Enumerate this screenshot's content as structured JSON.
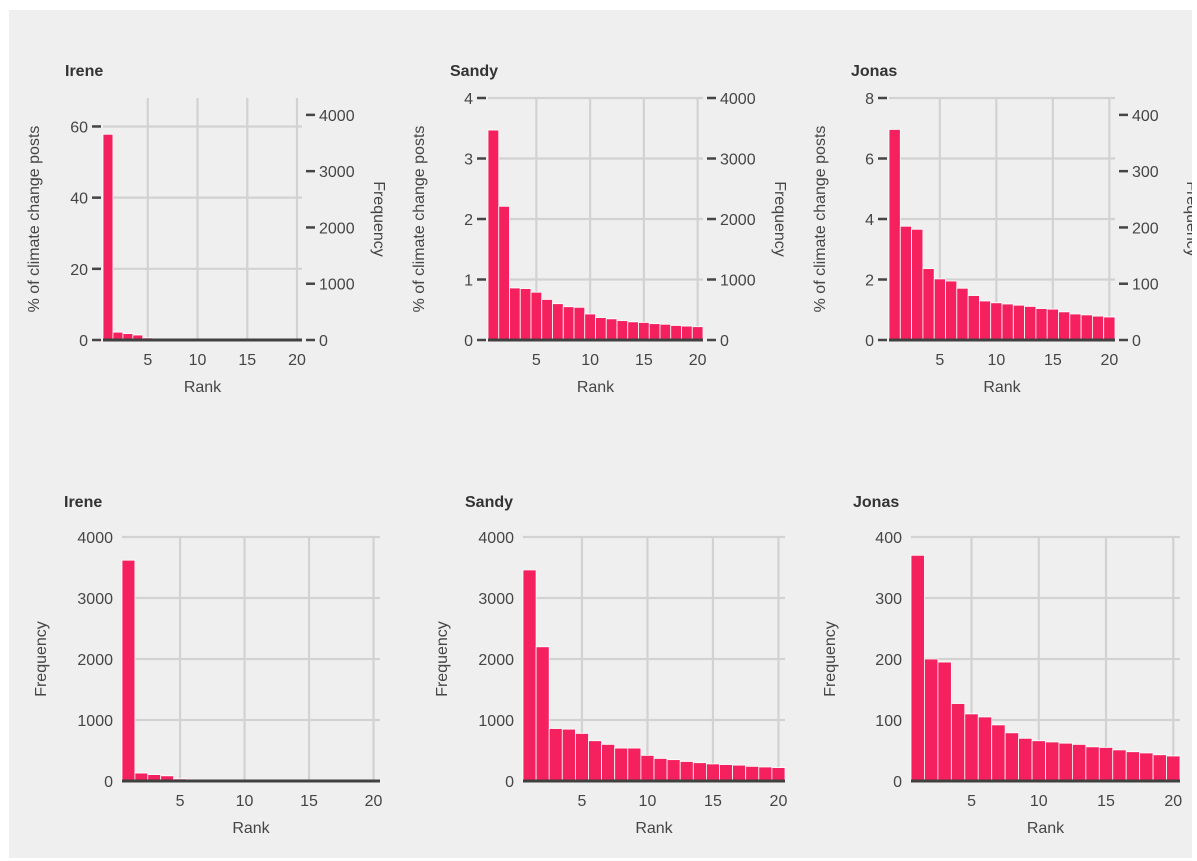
{
  "colors": {
    "bar": "#f5215f",
    "bar_edge": "#ffffff",
    "grid": "#d2d2d2",
    "panel_bg": "#efefef",
    "baseline": "#404040"
  },
  "chart_data": [
    {
      "id": "top-irene",
      "type": "bar",
      "title": "Irene",
      "xlabel": "Rank",
      "ylabel": "% of climate change posts",
      "ylabel2": "Frequency",
      "x": [
        1,
        2,
        3,
        4,
        5,
        6,
        7,
        8,
        9,
        10,
        11,
        12,
        13,
        14,
        15,
        16,
        17,
        18,
        19,
        20
      ],
      "values": [
        57.8,
        2.2,
        1.8,
        1.4,
        0.6,
        0.3,
        0.25,
        0.2,
        0.18,
        0.15,
        0.13,
        0.12,
        0.1,
        0.1,
        0.09,
        0.08,
        0.07,
        0.07,
        0.06,
        0.06
      ],
      "ylim": [
        0,
        68
      ],
      "yticks": [
        0,
        20,
        40,
        60
      ],
      "y2lim": [
        0,
        4300
      ],
      "y2ticks": [
        0,
        1000,
        2000,
        3000,
        4000
      ],
      "xlim": [
        0.5,
        20.5
      ],
      "xticks": [
        5,
        10,
        15,
        20
      ],
      "grid": true
    },
    {
      "id": "top-sandy",
      "type": "bar",
      "title": "Sandy",
      "xlabel": "Rank",
      "ylabel": "% of climate change posts",
      "ylabel2": "Frequency",
      "x": [
        1,
        2,
        3,
        4,
        5,
        6,
        7,
        8,
        9,
        10,
        11,
        12,
        13,
        14,
        15,
        16,
        17,
        18,
        19,
        20
      ],
      "values": [
        3.47,
        2.21,
        0.86,
        0.85,
        0.79,
        0.67,
        0.6,
        0.55,
        0.54,
        0.43,
        0.37,
        0.35,
        0.32,
        0.3,
        0.29,
        0.27,
        0.26,
        0.24,
        0.23,
        0.22
      ],
      "ylim": [
        0,
        4.0
      ],
      "yticks": [
        0,
        1,
        2,
        3,
        4
      ],
      "y2lim": [
        0,
        4000
      ],
      "y2ticks": [
        0,
        1000,
        2000,
        3000,
        4000
      ],
      "xlim": [
        0.5,
        20.5
      ],
      "xticks": [
        5,
        10,
        15,
        20
      ],
      "grid": true
    },
    {
      "id": "top-jonas",
      "type": "bar",
      "title": "Jonas",
      "xlabel": "Rank",
      "ylabel": "% of climate change posts",
      "ylabel2": "Frequency",
      "x": [
        1,
        2,
        3,
        4,
        5,
        6,
        7,
        8,
        9,
        10,
        11,
        12,
        13,
        14,
        15,
        16,
        17,
        18,
        19,
        20
      ],
      "values": [
        6.96,
        3.76,
        3.66,
        2.36,
        2.02,
        1.95,
        1.71,
        1.47,
        1.29,
        1.23,
        1.19,
        1.15,
        1.11,
        1.04,
        1.02,
        0.93,
        0.86,
        0.83,
        0.79,
        0.76
      ],
      "ylim": [
        0,
        8.0
      ],
      "yticks": [
        0,
        2,
        4,
        6,
        8
      ],
      "y2lim": [
        0,
        430
      ],
      "y2ticks": [
        0,
        100,
        200,
        300,
        400
      ],
      "xlim": [
        0.5,
        20.5
      ],
      "xticks": [
        5,
        10,
        15,
        20
      ],
      "grid": true
    },
    {
      "id": "bottom-irene",
      "type": "bar",
      "title": "Irene",
      "xlabel": "Rank",
      "ylabel": "Frequency",
      "x": [
        1,
        2,
        3,
        4,
        5,
        6,
        7,
        8,
        9,
        10,
        11,
        12,
        13,
        14,
        15,
        16,
        17,
        18,
        19,
        20
      ],
      "values": [
        3620,
        130,
        105,
        85,
        35,
        15,
        12,
        10,
        8,
        7,
        6,
        6,
        5,
        5,
        5,
        4,
        4,
        4,
        3,
        3
      ],
      "ylim": [
        0,
        4000
      ],
      "yticks": [
        0,
        1000,
        2000,
        3000,
        4000
      ],
      "xlim": [
        0.5,
        20.5
      ],
      "xticks": [
        5,
        10,
        15,
        20
      ],
      "grid": true
    },
    {
      "id": "bottom-sandy",
      "type": "bar",
      "title": "Sandy",
      "xlabel": "Rank",
      "ylabel": "Frequency",
      "x": [
        1,
        2,
        3,
        4,
        5,
        6,
        7,
        8,
        9,
        10,
        11,
        12,
        13,
        14,
        15,
        16,
        17,
        18,
        19,
        20
      ],
      "values": [
        3460,
        2200,
        860,
        850,
        780,
        660,
        600,
        540,
        540,
        420,
        370,
        350,
        320,
        300,
        280,
        270,
        260,
        240,
        230,
        220
      ],
      "ylim": [
        0,
        4000
      ],
      "yticks": [
        0,
        1000,
        2000,
        3000,
        4000
      ],
      "xlim": [
        0.5,
        20.5
      ],
      "xticks": [
        5,
        10,
        15,
        20
      ],
      "grid": true
    },
    {
      "id": "bottom-jonas",
      "type": "bar",
      "title": "Jonas",
      "xlabel": "Rank",
      "ylabel": "Frequency",
      "x": [
        1,
        2,
        3,
        4,
        5,
        6,
        7,
        8,
        9,
        10,
        11,
        12,
        13,
        14,
        15,
        16,
        17,
        18,
        19,
        20
      ],
      "values": [
        370,
        200,
        195,
        127,
        110,
        105,
        92,
        79,
        70,
        66,
        64,
        62,
        60,
        56,
        55,
        51,
        48,
        46,
        43,
        41
      ],
      "ylim": [
        0,
        400
      ],
      "yticks": [
        0,
        100,
        200,
        300,
        400
      ],
      "xlim": [
        0.5,
        20.5
      ],
      "xticks": [
        5,
        10,
        15,
        20
      ],
      "grid": true
    }
  ]
}
